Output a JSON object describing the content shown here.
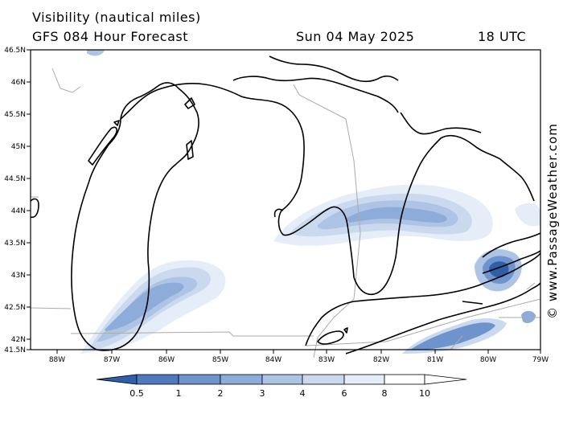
{
  "header": {
    "title": "Visibility (nautical miles)",
    "model": "GFS 084 Hour Forecast",
    "date": "Sun 04 May 2025",
    "time": "18 UTC"
  },
  "axes": {
    "lat_labels": [
      "46.5N",
      "46N",
      "45.5N",
      "45N",
      "44.5N",
      "44N",
      "43.5N",
      "43N",
      "42.5N",
      "42N",
      "41.5N"
    ],
    "lon_labels": [
      "88W",
      "87W",
      "86W",
      "85W",
      "84W",
      "83W",
      "82W",
      "81W",
      "80W",
      "79W"
    ]
  },
  "colorbar": {
    "labels": [
      "0.5",
      "1",
      "2",
      "3",
      "4",
      "6",
      "8",
      "10"
    ],
    "colors": [
      "#2e5fa8",
      "#4f79bd",
      "#6f93cc",
      "#8eacd9",
      "#aec4e5",
      "#cbd9ef",
      "#e4edf8",
      "#ffffff"
    ]
  },
  "watermark": "© www.PassageWeather.com"
}
